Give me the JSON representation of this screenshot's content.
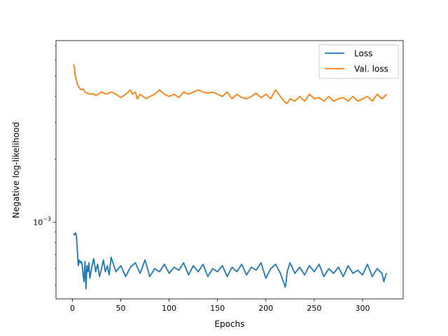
{
  "chart_data": {
    "type": "line",
    "title": "",
    "xlabel": "Epochs",
    "ylabel": "Negative log-likelihood",
    "xlim": [
      -17,
      342
    ],
    "ylim": [
      0.00043,
      0.0074
    ],
    "yscale": "log",
    "xticks": [
      0,
      50,
      100,
      150,
      200,
      250,
      300
    ],
    "xtick_labels": [
      "0",
      "50",
      "100",
      "150",
      "200",
      "250",
      "300"
    ],
    "yticks": [
      0.001
    ],
    "ytick_labels": [
      {
        "base": "10",
        "exp": "−3"
      }
    ],
    "grid": false,
    "legend_position": "top-right",
    "series": [
      {
        "name": "Loss",
        "color": "#1f77b4",
        "x": [
          1,
          2,
          3,
          4,
          5,
          6,
          7,
          8,
          9,
          10,
          11,
          12,
          13,
          14,
          15,
          16,
          17,
          18,
          20,
          22,
          24,
          26,
          28,
          30,
          32,
          34,
          36,
          38,
          40,
          45,
          50,
          55,
          60,
          65,
          70,
          75,
          80,
          85,
          90,
          95,
          100,
          105,
          110,
          115,
          120,
          125,
          130,
          135,
          140,
          145,
          150,
          155,
          160,
          165,
          170,
          175,
          180,
          185,
          190,
          195,
          200,
          205,
          210,
          215,
          220,
          221,
          222,
          225,
          230,
          235,
          240,
          245,
          250,
          255,
          260,
          265,
          270,
          275,
          280,
          285,
          290,
          295,
          300,
          305,
          310,
          315,
          320,
          322,
          324,
          325
        ],
        "y": [
          0.00088,
          0.00087,
          0.00089,
          0.00087,
          0.00075,
          0.00062,
          0.00066,
          0.00064,
          0.00065,
          0.00063,
          0.00056,
          0.00052,
          0.00065,
          0.00048,
          0.00062,
          0.00058,
          0.00064,
          0.00054,
          0.00061,
          0.00067,
          0.00058,
          0.00063,
          0.00055,
          0.0006,
          0.00066,
          0.00058,
          0.00062,
          0.00056,
          0.00068,
          0.00058,
          0.00062,
          0.00055,
          0.00061,
          0.00064,
          0.00057,
          0.00066,
          0.00055,
          0.0006,
          0.00058,
          0.00063,
          0.00057,
          0.00061,
          0.00059,
          0.00064,
          0.00056,
          0.00062,
          0.00058,
          0.00063,
          0.00055,
          0.0006,
          0.00058,
          0.00062,
          0.00055,
          0.00061,
          0.00058,
          0.00063,
          0.00056,
          0.00061,
          0.00059,
          0.00064,
          0.00054,
          0.0006,
          0.00063,
          0.00057,
          0.00049,
          0.00052,
          0.00058,
          0.00064,
          0.00057,
          0.00061,
          0.00056,
          0.00062,
          0.00058,
          0.00063,
          0.00055,
          0.0006,
          0.00057,
          0.00061,
          0.00055,
          0.00062,
          0.00057,
          0.00059,
          0.00056,
          0.00063,
          0.00055,
          0.0006,
          0.00057,
          0.00052,
          0.00056,
          0.00057
        ]
      },
      {
        "name": "Val. loss",
        "color": "#ff7f0e",
        "x": [
          1,
          2,
          3,
          5,
          7,
          9,
          11,
          13,
          15,
          18,
          21,
          24,
          27,
          30,
          35,
          40,
          45,
          50,
          55,
          60,
          62,
          65,
          67,
          70,
          73,
          76,
          80,
          85,
          90,
          95,
          100,
          105,
          110,
          115,
          120,
          125,
          130,
          135,
          140,
          145,
          150,
          155,
          160,
          165,
          170,
          175,
          180,
          185,
          190,
          195,
          200,
          205,
          210,
          215,
          220,
          222,
          225,
          230,
          235,
          240,
          245,
          250,
          255,
          260,
          265,
          270,
          275,
          280,
          285,
          290,
          295,
          300,
          305,
          310,
          315,
          320,
          325
        ],
        "y": [
          0.0057,
          0.0055,
          0.005,
          0.0046,
          0.0044,
          0.0043,
          0.00435,
          0.0042,
          0.00415,
          0.0041,
          0.00412,
          0.00405,
          0.0041,
          0.0042,
          0.0041,
          0.0042,
          0.0041,
          0.00395,
          0.0041,
          0.0043,
          0.0041,
          0.0042,
          0.0039,
          0.0041,
          0.004,
          0.0039,
          0.004,
          0.0041,
          0.0043,
          0.0041,
          0.004,
          0.0041,
          0.00395,
          0.0042,
          0.0041,
          0.0042,
          0.0043,
          0.0042,
          0.00415,
          0.0042,
          0.0041,
          0.004,
          0.0042,
          0.0039,
          0.0041,
          0.00395,
          0.0039,
          0.004,
          0.00415,
          0.00395,
          0.0041,
          0.0039,
          0.0043,
          0.004,
          0.00375,
          0.0037,
          0.0039,
          0.0038,
          0.004,
          0.0038,
          0.0041,
          0.0039,
          0.00395,
          0.0038,
          0.004,
          0.0038,
          0.0039,
          0.00395,
          0.0038,
          0.004,
          0.0038,
          0.0039,
          0.004,
          0.0038,
          0.0041,
          0.0039,
          0.0041
        ]
      }
    ]
  }
}
